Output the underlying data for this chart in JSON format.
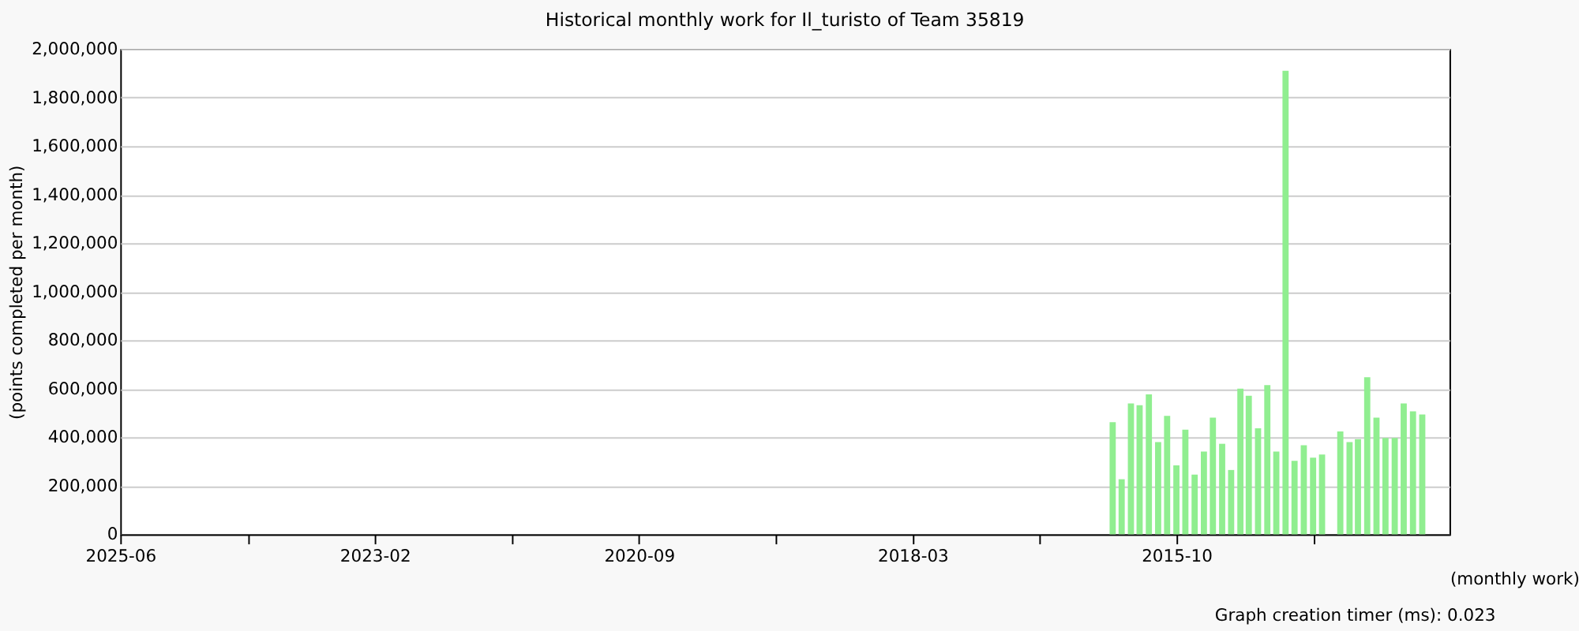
{
  "chart_data": {
    "type": "bar",
    "title": "Historical monthly work for Il_turisto of Team 35819",
    "xlabel": "(monthly work)",
    "ylabel": "(points completed per month)",
    "annotations": [
      "Graph creation timer (ms): 0.023"
    ],
    "x": [
      "2016-05",
      "2016-04",
      "2016-03",
      "2016-02",
      "2016-01",
      "2015-12",
      "2015-11",
      "2015-10",
      "2015-09",
      "2015-08",
      "2015-07",
      "2015-06",
      "2015-05",
      "2015-04",
      "2015-03",
      "2015-02",
      "2015-01",
      "2014-12",
      "2014-11",
      "2014-10",
      "2014-09",
      "2014-08",
      "2014-07",
      "2014-06",
      "2014-05",
      "2014-04",
      "2014-03",
      "2014-02",
      "2014-01",
      "2013-12",
      "2013-11",
      "2013-10",
      "2013-09",
      "2013-08",
      "2013-07"
    ],
    "series": [
      {
        "color": "#90ee90",
        "values": [
          462000,
          227000,
          539000,
          532000,
          577000,
          380000,
          488000,
          284000,
          431000,
          246000,
          341000,
          481000,
          373000,
          265000,
          600000,
          571000,
          437000,
          615000,
          341000,
          1910000,
          303000,
          367000,
          316000,
          329000,
          null,
          424000,
          380000,
          392000,
          647000,
          481000,
          397000,
          397000,
          539000,
          507000,
          494000
        ]
      }
    ],
    "xlim": [
      "2025-06",
      "2013-04"
    ],
    "xticks": [
      {
        "value": "2025-06",
        "label": "2025-06"
      },
      {
        "value": "2024-04",
        "label": null
      },
      {
        "value": "2023-02",
        "label": "2023-02"
      },
      {
        "value": "2021-11",
        "label": null
      },
      {
        "value": "2020-09",
        "label": "2020-09"
      },
      {
        "value": "2019-06",
        "label": null
      },
      {
        "value": "2018-03",
        "label": "2018-03"
      },
      {
        "value": "2017-01",
        "label": null
      },
      {
        "value": "2015-10",
        "label": "2015-10"
      },
      {
        "value": "2014-07",
        "label": null
      }
    ],
    "ylim": [
      0,
      2000000
    ],
    "yticks": [
      0,
      {
        "value": 200000,
        "label": "200,000"
      },
      {
        "value": 400000,
        "label": "400,000"
      },
      {
        "value": 600000,
        "label": "600,000"
      },
      {
        "value": 800000,
        "label": "800,000"
      },
      {
        "value": 1000000,
        "label": "1,000,000"
      },
      {
        "value": 1200000,
        "label": "1,200,000"
      },
      {
        "value": 1400000,
        "label": "1,400,000"
      },
      {
        "value": 1600000,
        "label": "1,600,000"
      },
      {
        "value": 1800000,
        "label": "1,800,000"
      },
      {
        "value": 2000000,
        "label": "2,000,000"
      }
    ],
    "grid": "y",
    "legend": false
  }
}
